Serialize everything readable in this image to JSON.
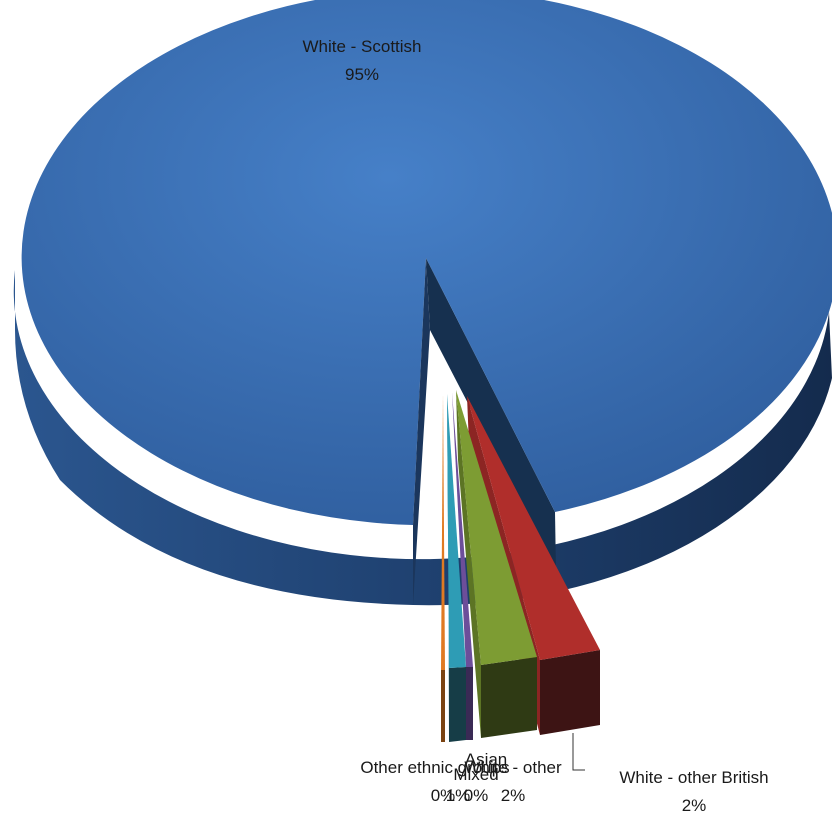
{
  "chart_data": {
    "type": "pie",
    "variant": "3d-exploded",
    "title": "",
    "slices": [
      {
        "label": "White - Scottish",
        "value": 95,
        "value_label": "95%",
        "color": "#3E70B5"
      },
      {
        "label": "White - other British",
        "value": 2,
        "value_label": "2%",
        "color": "#B02E2B"
      },
      {
        "label": "White - other",
        "value": 2,
        "value_label": "2%",
        "color": "#7D9C33"
      },
      {
        "label": "Mixed",
        "value": 0,
        "value_label": "0%",
        "color": "#6C4E9A"
      },
      {
        "label": "Asian",
        "value": 1,
        "value_label": "1%",
        "color": "#2E9CB5"
      },
      {
        "label": "Other ethnic groups",
        "value": 0,
        "value_label": "0%",
        "color": "#E07A22"
      }
    ]
  }
}
